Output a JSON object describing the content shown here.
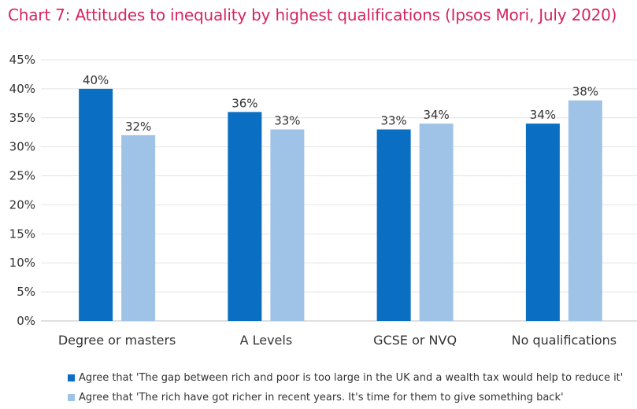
{
  "title": "Chart 7: Attitudes to inequality by highest qualifications (Ipsos Mori, July 2020)",
  "colors": {
    "title": "#d6245e",
    "series1": "#0a6fc2",
    "series2": "#9fc3e7",
    "grid": "#e4e4e4"
  },
  "chart_data": {
    "type": "bar",
    "title": "Chart 7: Attitudes to inequality by highest qualifications (Ipsos Mori, July 2020)",
    "categories": [
      "Degree or masters",
      "A Levels",
      "GCSE or NVQ",
      "No qualifications"
    ],
    "series": [
      {
        "name": "Agree that 'The gap between rich and poor is too large in the UK and a wealth tax would help to reduce it'",
        "values": [
          40,
          36,
          33,
          34
        ],
        "labels": [
          "40%",
          "36%",
          "33%",
          "34%"
        ]
      },
      {
        "name": "Agree that 'The rich have got richer in recent years. It's time for them to give something back'",
        "values": [
          32,
          33,
          34,
          38
        ],
        "labels": [
          "32%",
          "33%",
          "34%",
          "38%"
        ]
      }
    ],
    "ylim": [
      0,
      45
    ],
    "yticks": [
      "0%",
      "5%",
      "10%",
      "15%",
      "20%",
      "25%",
      "30%",
      "35%",
      "40%",
      "45%"
    ],
    "grid": true,
    "legend_position": "bottom"
  }
}
